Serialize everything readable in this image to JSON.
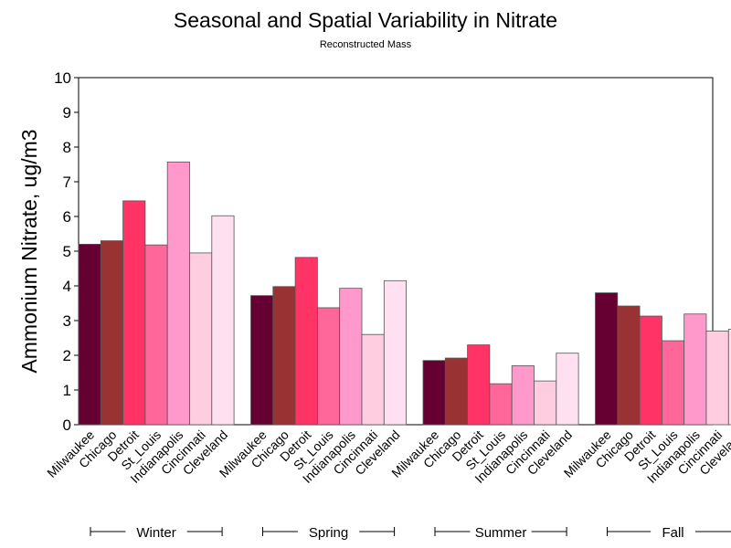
{
  "chart_data": {
    "type": "bar",
    "title": "Seasonal and Spatial Variability in Nitrate",
    "subtitle": "Reconstructed Mass",
    "ylabel": "Ammonium Nitrate, ug/m3",
    "ylim": [
      0,
      10
    ],
    "yticks": [
      0,
      1,
      2,
      3,
      4,
      5,
      6,
      7,
      8,
      9,
      10
    ],
    "grid": false,
    "categories": [
      "Milwaukee",
      "Chicago",
      "Detroit",
      "St_Louis",
      "Indianapolis",
      "Cincinnati",
      "Cleveland"
    ],
    "category_colors": [
      "#660033",
      "#993333",
      "#ff3366",
      "#ff6699",
      "#ff99cc",
      "#ffcce0",
      "#ffe0f0"
    ],
    "groups": [
      {
        "name": "Winter",
        "values": [
          5.2,
          5.3,
          6.45,
          5.18,
          7.57,
          4.95,
          6.02
        ]
      },
      {
        "name": "Spring",
        "values": [
          3.72,
          3.98,
          4.82,
          3.37,
          3.93,
          2.6,
          4.15
        ]
      },
      {
        "name": "Summer",
        "values": [
          1.85,
          1.92,
          2.3,
          1.18,
          1.7,
          1.26,
          2.06
        ]
      },
      {
        "name": "Fall",
        "values": [
          3.8,
          3.42,
          3.13,
          2.42,
          3.19,
          2.7,
          2.75
        ]
      }
    ]
  }
}
